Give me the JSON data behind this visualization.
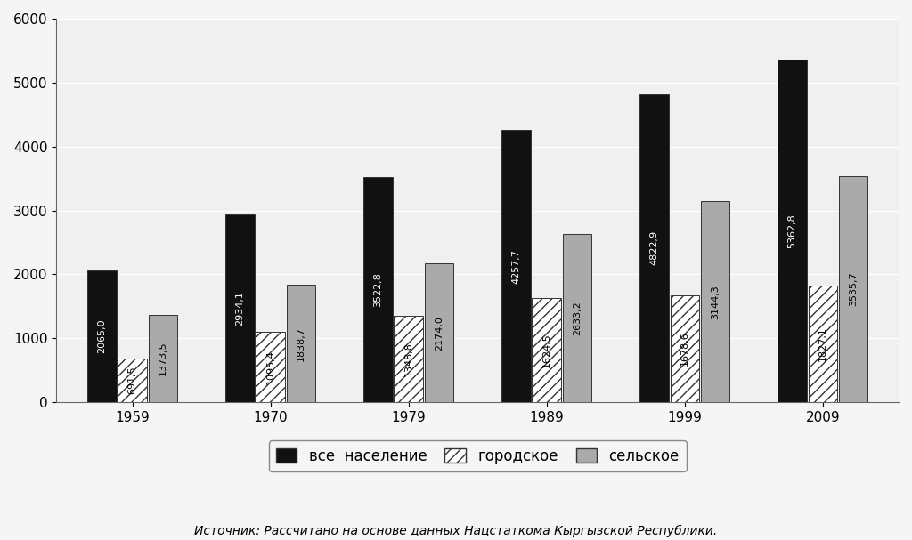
{
  "years": [
    "1959",
    "1970",
    "1979",
    "1989",
    "1999",
    "2009"
  ],
  "total": [
    2065.0,
    2934.1,
    3522.8,
    4257.7,
    4822.9,
    5362.8
  ],
  "urban": [
    691.5,
    1095.4,
    1348.8,
    1624.5,
    1678.6,
    1827.1
  ],
  "rural": [
    1373.5,
    1838.7,
    2174.0,
    2633.2,
    3144.3,
    3535.7
  ],
  "total_color": "#111111",
  "urban_color": "#ffffff",
  "rural_color": "#aaaaaa",
  "bar_edge_color": "#333333",
  "background_color": "#f5f5f5",
  "plot_bg_color": "#f0f0f0",
  "ylim": [
    0,
    6000
  ],
  "yticks": [
    0,
    1000,
    2000,
    3000,
    4000,
    5000,
    6000
  ],
  "legend_labels": [
    "все  население",
    "городское",
    "сельское"
  ],
  "source_text": "Источник: Рассчитано на основе данных Нацстаткома Кыргызской Республики.",
  "bar_width": 0.22,
  "label_fontsize": 8.0,
  "tick_fontsize": 11,
  "legend_fontsize": 12,
  "source_fontsize": 10
}
